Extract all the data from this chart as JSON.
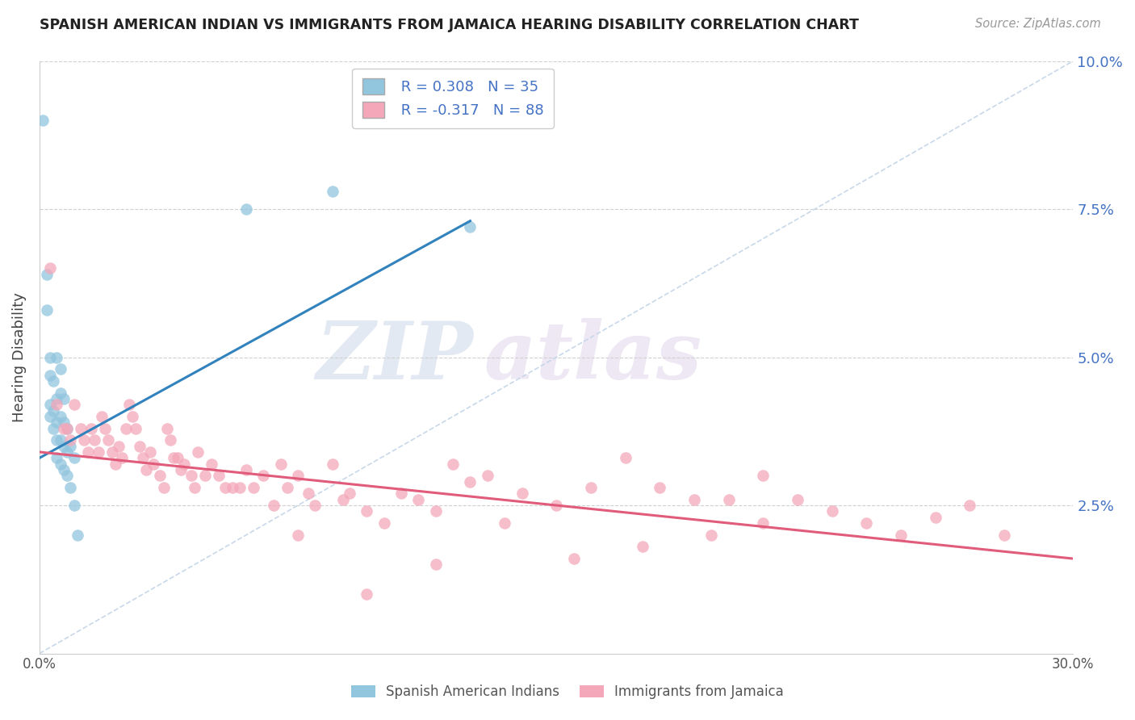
{
  "title": "SPANISH AMERICAN INDIAN VS IMMIGRANTS FROM JAMAICA HEARING DISABILITY CORRELATION CHART",
  "source": "Source: ZipAtlas.com",
  "ylabel": "Hearing Disability",
  "xmin": 0.0,
  "xmax": 0.3,
  "ymin": 0.0,
  "ymax": 0.1,
  "yticks": [
    0.0,
    0.025,
    0.05,
    0.075,
    0.1
  ],
  "ytick_labels": [
    "",
    "2.5%",
    "5.0%",
    "7.5%",
    "10.0%"
  ],
  "xticks": [
    0.0,
    0.05,
    0.1,
    0.15,
    0.2,
    0.25,
    0.3
  ],
  "xtick_labels": [
    "0.0%",
    "",
    "",
    "",
    "",
    "",
    "30.0%"
  ],
  "legend1_R": "0.308",
  "legend1_N": "35",
  "legend2_R": "-0.317",
  "legend2_N": "88",
  "blue_color": "#92c5de",
  "pink_color": "#f4a7b9",
  "blue_line_color": "#3182bd",
  "pink_line_color": "#e05c7a",
  "dashed_line_color": "#c8d8ea",
  "watermark_zip": "ZIP",
  "watermark_atlas": "atlas",
  "blue_scatter_x": [
    0.001,
    0.002,
    0.002,
    0.003,
    0.003,
    0.003,
    0.003,
    0.004,
    0.004,
    0.004,
    0.005,
    0.005,
    0.005,
    0.005,
    0.005,
    0.006,
    0.006,
    0.006,
    0.006,
    0.006,
    0.007,
    0.007,
    0.007,
    0.007,
    0.008,
    0.008,
    0.008,
    0.009,
    0.009,
    0.01,
    0.01,
    0.011,
    0.06,
    0.085,
    0.125
  ],
  "blue_scatter_y": [
    0.09,
    0.064,
    0.058,
    0.05,
    0.047,
    0.042,
    0.04,
    0.046,
    0.041,
    0.038,
    0.05,
    0.043,
    0.039,
    0.036,
    0.033,
    0.048,
    0.044,
    0.04,
    0.036,
    0.032,
    0.043,
    0.039,
    0.035,
    0.031,
    0.038,
    0.034,
    0.03,
    0.035,
    0.028,
    0.033,
    0.025,
    0.02,
    0.075,
    0.078,
    0.072
  ],
  "pink_scatter_x": [
    0.003,
    0.005,
    0.007,
    0.008,
    0.009,
    0.01,
    0.012,
    0.013,
    0.014,
    0.015,
    0.016,
    0.017,
    0.018,
    0.019,
    0.02,
    0.021,
    0.022,
    0.023,
    0.024,
    0.025,
    0.026,
    0.027,
    0.028,
    0.029,
    0.03,
    0.031,
    0.032,
    0.033,
    0.035,
    0.036,
    0.037,
    0.038,
    0.039,
    0.04,
    0.041,
    0.042,
    0.044,
    0.045,
    0.046,
    0.048,
    0.05,
    0.052,
    0.054,
    0.056,
    0.058,
    0.06,
    0.062,
    0.065,
    0.068,
    0.07,
    0.072,
    0.075,
    0.078,
    0.08,
    0.085,
    0.088,
    0.09,
    0.095,
    0.1,
    0.105,
    0.11,
    0.115,
    0.12,
    0.125,
    0.13,
    0.14,
    0.15,
    0.16,
    0.17,
    0.18,
    0.19,
    0.2,
    0.21,
    0.22,
    0.23,
    0.24,
    0.25,
    0.26,
    0.27,
    0.28,
    0.21,
    0.195,
    0.175,
    0.155,
    0.135,
    0.115,
    0.095,
    0.075
  ],
  "pink_scatter_y": [
    0.065,
    0.042,
    0.038,
    0.038,
    0.036,
    0.042,
    0.038,
    0.036,
    0.034,
    0.038,
    0.036,
    0.034,
    0.04,
    0.038,
    0.036,
    0.034,
    0.032,
    0.035,
    0.033,
    0.038,
    0.042,
    0.04,
    0.038,
    0.035,
    0.033,
    0.031,
    0.034,
    0.032,
    0.03,
    0.028,
    0.038,
    0.036,
    0.033,
    0.033,
    0.031,
    0.032,
    0.03,
    0.028,
    0.034,
    0.03,
    0.032,
    0.03,
    0.028,
    0.028,
    0.028,
    0.031,
    0.028,
    0.03,
    0.025,
    0.032,
    0.028,
    0.03,
    0.027,
    0.025,
    0.032,
    0.026,
    0.027,
    0.024,
    0.022,
    0.027,
    0.026,
    0.024,
    0.032,
    0.029,
    0.03,
    0.027,
    0.025,
    0.028,
    0.033,
    0.028,
    0.026,
    0.026,
    0.03,
    0.026,
    0.024,
    0.022,
    0.02,
    0.023,
    0.025,
    0.02,
    0.022,
    0.02,
    0.018,
    0.016,
    0.022,
    0.015,
    0.01,
    0.02
  ],
  "blue_line_x": [
    0.0,
    0.125
  ],
  "blue_line_y": [
    0.033,
    0.073
  ],
  "pink_line_x": [
    0.0,
    0.3
  ],
  "pink_line_y": [
    0.034,
    0.016
  ]
}
